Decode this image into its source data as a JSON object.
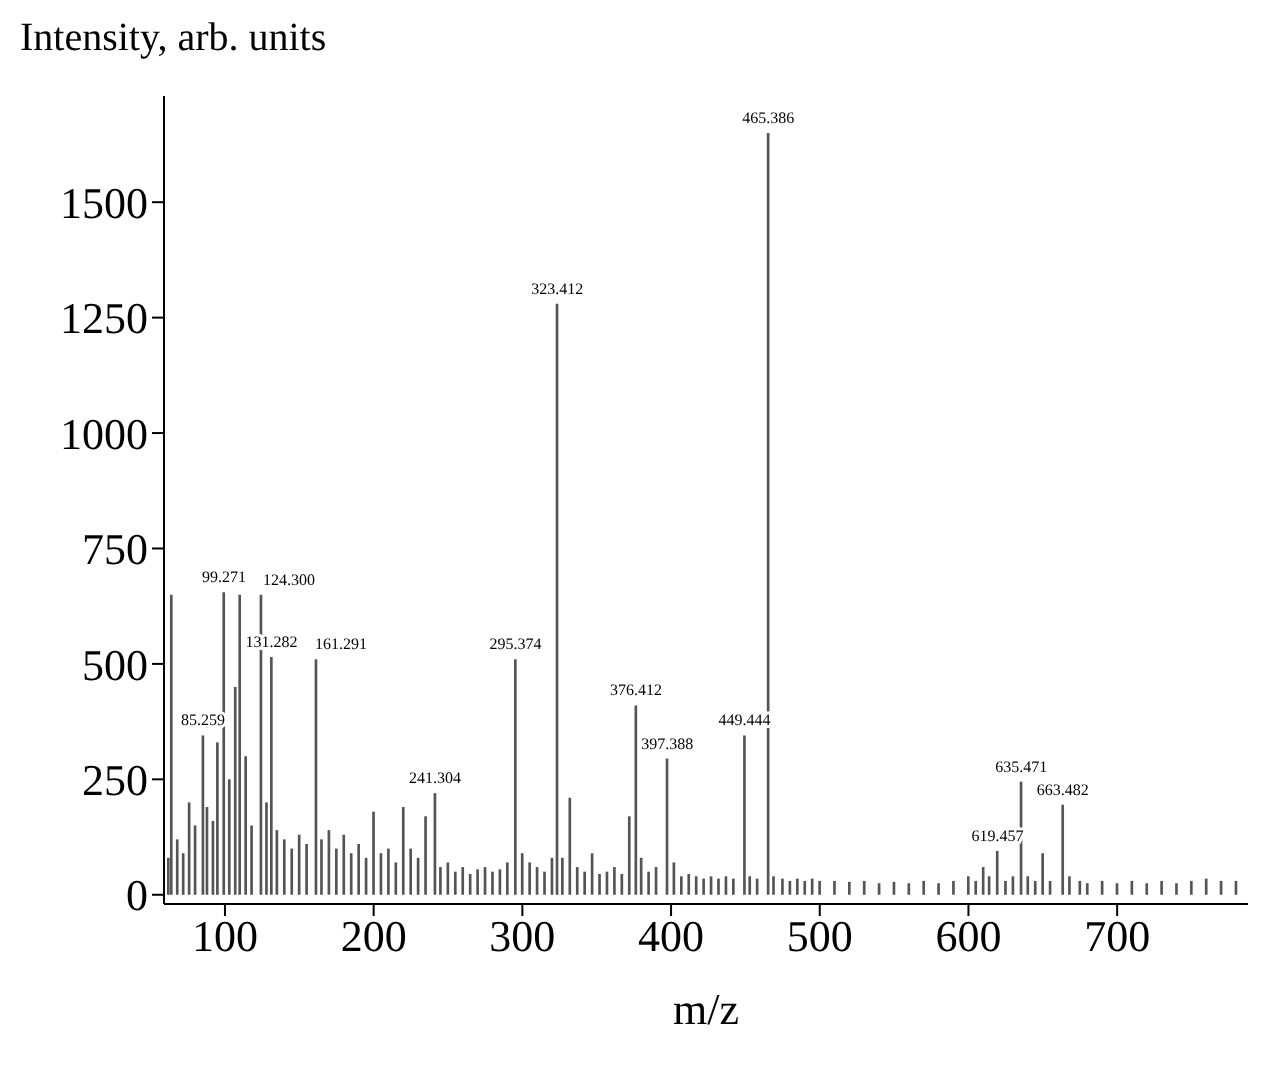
{
  "chart_data": {
    "type": "bar",
    "xlabel": "m/z",
    "ylabel": "Intensity, arb. units",
    "color": "#555555",
    "x": [
      62,
      64,
      68,
      72,
      76,
      80,
      85.259,
      88,
      92,
      95,
      99.271,
      103,
      107,
      110,
      114,
      118,
      124.3,
      128,
      131.282,
      135,
      140,
      145,
      150,
      155,
      161.291,
      165,
      170,
      175,
      180,
      185,
      190,
      195,
      200,
      205,
      210,
      215,
      220,
      225,
      230,
      235,
      241.304,
      245,
      250,
      255,
      260,
      265,
      270,
      275,
      280,
      285,
      290,
      295.374,
      300,
      305,
      310,
      315,
      320,
      323.412,
      327,
      332,
      337,
      342,
      347,
      352,
      357,
      362,
      367,
      372,
      376.412,
      380,
      385,
      390,
      397.388,
      402,
      407,
      412,
      417,
      422,
      427,
      432,
      437,
      442,
      449.444,
      453,
      458,
      465.386,
      469,
      475,
      480,
      485,
      490,
      495,
      500,
      510,
      520,
      530,
      540,
      550,
      560,
      570,
      580,
      590,
      600,
      605,
      610,
      614,
      619.457,
      625,
      630,
      635.471,
      640,
      645,
      650,
      655,
      663.482,
      668,
      675,
      680,
      690,
      700,
      710,
      720,
      730,
      740,
      750,
      760,
      770,
      780
    ],
    "values": [
      80,
      650,
      120,
      90,
      200,
      150,
      345,
      190,
      160,
      330,
      655,
      250,
      450,
      650,
      300,
      150,
      650,
      200,
      515,
      140,
      120,
      100,
      130,
      110,
      510,
      120,
      140,
      100,
      130,
      90,
      110,
      80,
      180,
      90,
      100,
      70,
      190,
      100,
      80,
      170,
      220,
      60,
      70,
      50,
      60,
      45,
      55,
      60,
      50,
      55,
      70,
      510,
      90,
      70,
      60,
      50,
      80,
      1280,
      80,
      210,
      60,
      50,
      90,
      45,
      50,
      60,
      45,
      170,
      410,
      80,
      50,
      60,
      295,
      70,
      40,
      45,
      40,
      35,
      40,
      35,
      40,
      35,
      345,
      40,
      35,
      1650,
      40,
      35,
      30,
      35,
      30,
      35,
      30,
      30,
      28,
      30,
      25,
      28,
      25,
      30,
      25,
      30,
      40,
      30,
      60,
      40,
      95,
      30,
      40,
      245,
      40,
      30,
      90,
      30,
      195,
      40,
      30,
      25,
      30,
      25,
      30,
      25,
      30,
      25,
      30,
      35,
      30,
      30
    ],
    "xlim": [
      59,
      788
    ],
    "xticks": [
      100,
      200,
      300,
      400,
      500,
      600,
      700
    ],
    "ylim": [
      -20,
      1730
    ],
    "yticks": [
      0,
      250,
      500,
      750,
      1000,
      1250,
      1500
    ],
    "grid": false,
    "legend": false,
    "annotations": [
      {
        "text": "85.259",
        "x": 85.259,
        "y": 345
      },
      {
        "text": "99.271",
        "x": 99.271,
        "y": 655
      },
      {
        "text": "124.300",
        "x": 124.3,
        "y": 650
      },
      {
        "text": "131.282",
        "x": 131.282,
        "y": 515
      },
      {
        "text": "161.291",
        "x": 161.291,
        "y": 510
      },
      {
        "text": "241.304",
        "x": 241.304,
        "y": 220
      },
      {
        "text": "295.374",
        "x": 295.374,
        "y": 510
      },
      {
        "text": "323.412",
        "x": 323.412,
        "y": 1280
      },
      {
        "text": "376.412",
        "x": 376.412,
        "y": 410
      },
      {
        "text": "397.388",
        "x": 397.388,
        "y": 295
      },
      {
        "text": "449.444",
        "x": 449.444,
        "y": 345
      },
      {
        "text": "465.386",
        "x": 465.386,
        "y": 1650
      },
      {
        "text": "619.457",
        "x": 619.457,
        "y": 95
      },
      {
        "text": "635.471",
        "x": 635.471,
        "y": 245
      },
      {
        "text": "663.482",
        "x": 663.482,
        "y": 195
      }
    ]
  }
}
